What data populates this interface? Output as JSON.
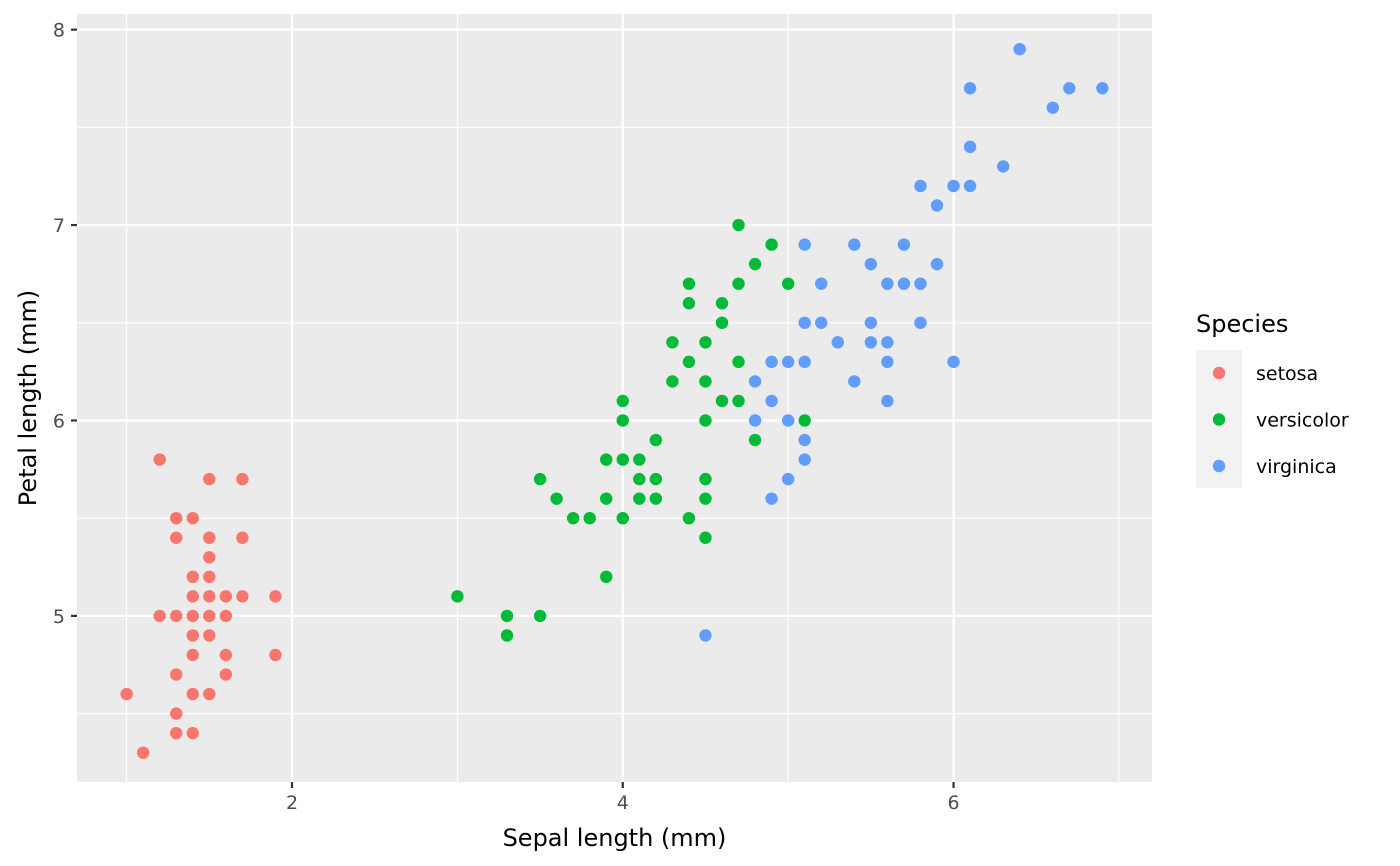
{
  "chart_data": {
    "type": "scatter",
    "title": "",
    "xlabel": "Sepal length (mm)",
    "ylabel": "Petal length (mm)",
    "xlim": [
      0.7,
      7.2
    ],
    "ylim": [
      4.15,
      8.08
    ],
    "x_ticks": [
      2,
      4,
      6
    ],
    "y_ticks": [
      5,
      6,
      7,
      8
    ],
    "x_tick_labels": [
      "2",
      "4",
      "6"
    ],
    "y_tick_labels": [
      "5",
      "6",
      "7",
      "8"
    ],
    "grid": true,
    "legend": {
      "title": "Species",
      "position": "right"
    },
    "series": [
      {
        "name": "setosa",
        "color": "#F8766D",
        "points": [
          [
            1.0,
            4.6
          ],
          [
            1.1,
            4.3
          ],
          [
            1.2,
            5.8
          ],
          [
            1.2,
            5.0
          ],
          [
            1.3,
            5.5
          ],
          [
            1.3,
            5.4
          ],
          [
            1.3,
            5.0
          ],
          [
            1.3,
            4.7
          ],
          [
            1.3,
            4.5
          ],
          [
            1.3,
            4.4
          ],
          [
            1.4,
            5.5
          ],
          [
            1.4,
            5.2
          ],
          [
            1.4,
            5.1
          ],
          [
            1.4,
            5.0
          ],
          [
            1.4,
            4.9
          ],
          [
            1.4,
            4.8
          ],
          [
            1.4,
            4.6
          ],
          [
            1.4,
            4.4
          ],
          [
            1.5,
            5.7
          ],
          [
            1.5,
            5.4
          ],
          [
            1.5,
            5.3
          ],
          [
            1.5,
            5.2
          ],
          [
            1.5,
            5.1
          ],
          [
            1.5,
            5.0
          ],
          [
            1.5,
            4.9
          ],
          [
            1.5,
            4.6
          ],
          [
            1.6,
            5.1
          ],
          [
            1.6,
            5.0
          ],
          [
            1.6,
            4.8
          ],
          [
            1.6,
            4.7
          ],
          [
            1.7,
            5.7
          ],
          [
            1.7,
            5.4
          ],
          [
            1.7,
            5.1
          ],
          [
            1.9,
            5.1
          ],
          [
            1.9,
            4.8
          ]
        ]
      },
      {
        "name": "versicolor",
        "color": "#00BA38",
        "points": [
          [
            3.0,
            5.1
          ],
          [
            3.3,
            5.0
          ],
          [
            3.3,
            4.9
          ],
          [
            3.5,
            5.7
          ],
          [
            3.5,
            5.0
          ],
          [
            3.6,
            5.6
          ],
          [
            3.7,
            5.5
          ],
          [
            3.8,
            5.5
          ],
          [
            3.9,
            5.8
          ],
          [
            3.9,
            5.6
          ],
          [
            3.9,
            5.2
          ],
          [
            4.0,
            6.1
          ],
          [
            4.0,
            6.0
          ],
          [
            4.0,
            5.8
          ],
          [
            4.0,
            5.5
          ],
          [
            4.1,
            5.8
          ],
          [
            4.1,
            5.7
          ],
          [
            4.1,
            5.6
          ],
          [
            4.2,
            5.9
          ],
          [
            4.2,
            5.7
          ],
          [
            4.2,
            5.6
          ],
          [
            4.3,
            6.4
          ],
          [
            4.3,
            6.2
          ],
          [
            4.4,
            6.7
          ],
          [
            4.4,
            6.6
          ],
          [
            4.4,
            6.3
          ],
          [
            4.4,
            5.5
          ],
          [
            4.5,
            6.4
          ],
          [
            4.5,
            6.2
          ],
          [
            4.5,
            6.0
          ],
          [
            4.5,
            5.7
          ],
          [
            4.5,
            5.6
          ],
          [
            4.5,
            5.4
          ],
          [
            4.6,
            6.6
          ],
          [
            4.6,
            6.5
          ],
          [
            4.6,
            6.1
          ],
          [
            4.7,
            7.0
          ],
          [
            4.7,
            6.7
          ],
          [
            4.7,
            6.3
          ],
          [
            4.7,
            6.1
          ],
          [
            4.8,
            6.8
          ],
          [
            4.8,
            5.9
          ],
          [
            4.9,
            6.9
          ],
          [
            5.0,
            6.7
          ],
          [
            5.1,
            6.0
          ]
        ]
      },
      {
        "name": "virginica",
        "color": "#619CFF",
        "points": [
          [
            4.5,
            4.9
          ],
          [
            4.8,
            6.2
          ],
          [
            4.8,
            6.0
          ],
          [
            4.9,
            6.3
          ],
          [
            4.9,
            6.1
          ],
          [
            4.9,
            5.6
          ],
          [
            5.0,
            6.3
          ],
          [
            5.0,
            6.0
          ],
          [
            5.0,
            5.7
          ],
          [
            5.1,
            6.9
          ],
          [
            5.1,
            6.5
          ],
          [
            5.1,
            6.3
          ],
          [
            5.1,
            5.9
          ],
          [
            5.1,
            5.8
          ],
          [
            5.2,
            6.7
          ],
          [
            5.2,
            6.5
          ],
          [
            5.3,
            6.4
          ],
          [
            5.4,
            6.9
          ],
          [
            5.4,
            6.2
          ],
          [
            5.5,
            6.8
          ],
          [
            5.5,
            6.5
          ],
          [
            5.5,
            6.4
          ],
          [
            5.6,
            6.7
          ],
          [
            5.6,
            6.4
          ],
          [
            5.6,
            6.3
          ],
          [
            5.6,
            6.1
          ],
          [
            5.7,
            6.9
          ],
          [
            5.7,
            6.7
          ],
          [
            5.8,
            7.2
          ],
          [
            5.8,
            6.7
          ],
          [
            5.8,
            6.5
          ],
          [
            5.9,
            7.1
          ],
          [
            5.9,
            6.8
          ],
          [
            6.0,
            7.2
          ],
          [
            6.0,
            6.3
          ],
          [
            6.1,
            7.7
          ],
          [
            6.1,
            7.4
          ],
          [
            6.1,
            7.2
          ],
          [
            6.3,
            7.3
          ],
          [
            6.4,
            7.9
          ],
          [
            6.6,
            7.6
          ],
          [
            6.7,
            7.7
          ],
          [
            6.9,
            7.7
          ]
        ]
      }
    ]
  }
}
